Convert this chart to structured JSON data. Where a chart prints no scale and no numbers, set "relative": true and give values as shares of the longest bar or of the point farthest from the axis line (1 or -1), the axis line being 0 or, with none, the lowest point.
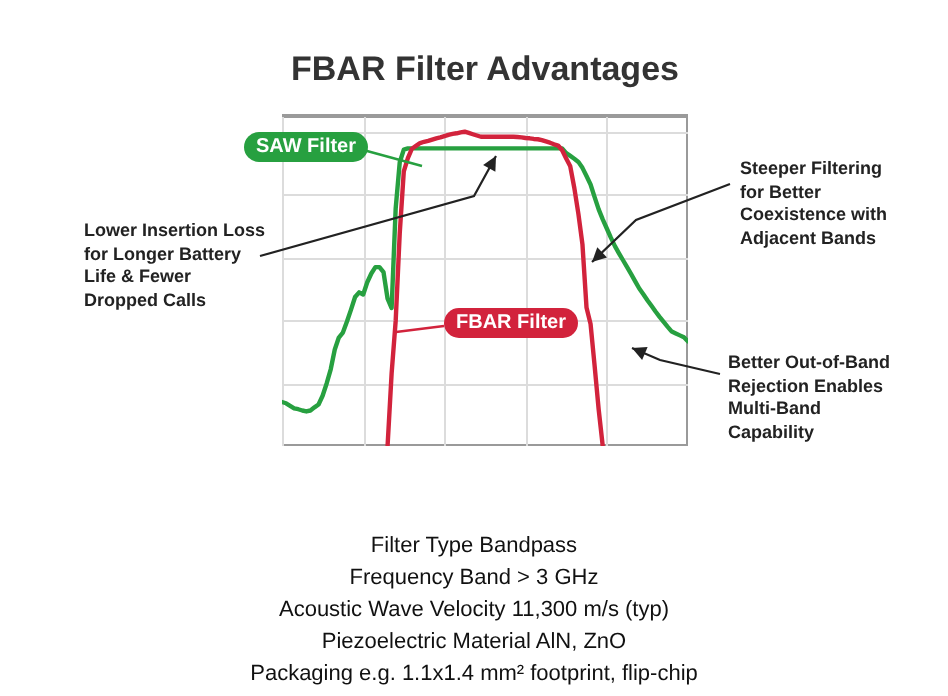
{
  "chart_data": {
    "type": "line",
    "title": "FBAR Filter Advantages",
    "relative": true,
    "grid": true,
    "marker": "none",
    "categories": [
      null,
      null,
      null,
      null,
      null,
      null,
      null,
      null,
      null,
      null,
      null,
      null,
      null,
      null,
      null,
      null,
      null,
      null,
      null,
      null,
      null,
      null,
      null,
      null,
      null,
      null,
      null,
      null,
      null,
      null,
      null,
      null,
      null,
      null,
      null,
      null,
      null,
      null,
      null,
      null,
      null,
      null,
      null,
      null,
      null,
      null,
      null,
      null,
      null,
      null,
      null,
      null,
      null,
      null,
      null,
      null,
      null,
      null,
      null,
      null,
      null,
      null,
      null,
      null,
      null,
      null,
      null,
      null,
      null,
      null,
      null,
      null,
      null,
      null,
      null,
      null,
      null,
      null,
      null,
      null,
      null,
      null,
      null,
      null,
      null,
      null,
      null,
      null,
      null,
      null,
      null,
      null,
      null,
      null,
      null,
      null,
      null,
      null,
      null,
      null,
      null
    ],
    "series": [
      {
        "name": "SAW Filter",
        "color": "#27a040",
        "values": [
          0.14,
          0.136,
          0.128,
          0.12,
          0.117,
          0.113,
          0.11,
          0.113,
          0.123,
          0.132,
          0.16,
          0.199,
          0.244,
          0.307,
          0.345,
          0.361,
          0.396,
          0.434,
          0.474,
          0.489,
          0.482,
          0.521,
          0.549,
          0.569,
          0.569,
          0.553,
          0.469,
          0.439,
          0.756,
          0.903,
          0.943,
          0.947,
          0.947,
          0.947,
          0.947,
          0.947,
          0.947,
          0.947,
          0.947,
          0.947,
          0.947,
          0.947,
          0.947,
          0.947,
          0.947,
          0.947,
          0.947,
          0.947,
          0.947,
          0.947,
          0.947,
          0.947,
          0.947,
          0.947,
          0.947,
          0.947,
          0.947,
          0.947,
          0.947,
          0.947,
          0.947,
          0.947,
          0.947,
          0.947,
          0.947,
          0.947,
          0.947,
          0.947,
          0.947,
          0.947,
          0.932,
          0.923,
          0.914,
          0.904,
          0.885,
          0.859,
          0.832,
          0.792,
          0.753,
          0.721,
          0.692,
          0.663,
          0.636,
          0.613,
          0.591,
          0.569,
          0.547,
          0.524,
          0.501,
          0.483,
          0.464,
          0.446,
          0.428,
          0.411,
          0.395,
          0.379,
          0.364,
          0.358,
          0.352,
          0.346,
          0.333
        ]
      },
      {
        "name": "FBAR Filter",
        "color": "#d2233c",
        "values": [
          null,
          null,
          null,
          null,
          null,
          null,
          null,
          null,
          null,
          null,
          null,
          null,
          null,
          null,
          null,
          null,
          null,
          null,
          null,
          null,
          null,
          null,
          null,
          null,
          null,
          null,
          0,
          0.231,
          0.398,
          0.677,
          0.874,
          0.916,
          0.946,
          0.955,
          0.964,
          0.968,
          0.971,
          0.975,
          0.979,
          0.982,
          0.986,
          0.99,
          0.993,
          0.995,
          0.998,
          1,
          0.996,
          0.992,
          0.988,
          0.984,
          0.984,
          0.984,
          0.984,
          0.984,
          0.984,
          0.984,
          0.984,
          0.984,
          0.983,
          0.982,
          0.98,
          0.979,
          0.977,
          0.976,
          0.973,
          0.969,
          0.965,
          0.96,
          0.956,
          0.941,
          0.915,
          0.89,
          0.821,
          0.739,
          0.642,
          0.441,
          0.388,
          0.255,
          0.116,
          0,
          null,
          null,
          null,
          null,
          null,
          null,
          null,
          null,
          null,
          null,
          null,
          null,
          null,
          null,
          null,
          null,
          null,
          null,
          null,
          null,
          null
        ]
      }
    ],
    "annotations": [
      "Lower Insertion Loss for Longer Battery Life & Fewer Dropped Calls",
      "Steeper Filtering for Better Coexistence with Adjacent Bands",
      "Better Out-of-Band Rejection Enables Multi-Band Capability",
      "Filter Type Bandpass",
      "Frequency Band > 3 GHz",
      "Acoustic Wave Velocity 11,300 m/s (typ)",
      "Piezoelectric Material AlN, ZnO",
      "Packaging e.g. 1.1x1.4 mm² footprint, flip-chip"
    ]
  }
}
